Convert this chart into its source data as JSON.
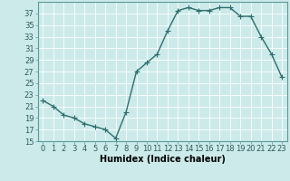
{
  "x": [
    0,
    1,
    2,
    3,
    4,
    5,
    6,
    7,
    8,
    9,
    10,
    11,
    12,
    13,
    14,
    15,
    16,
    17,
    18,
    19,
    20,
    21,
    22,
    23
  ],
  "y": [
    22,
    21,
    19.5,
    19,
    18,
    17.5,
    17,
    15.5,
    20,
    27,
    28.5,
    30,
    34,
    37.5,
    38,
    37.5,
    37.5,
    38,
    38,
    36.5,
    36.5,
    33,
    30,
    26
  ],
  "line_color": "#2d6e6e",
  "marker": "+",
  "marker_size": 4,
  "bg_color": "#cceaea",
  "grid_color": "#b0d8d8",
  "xlabel": "Humidex (Indice chaleur)",
  "ylim": [
    15,
    39
  ],
  "xlim": [
    -0.5,
    23.5
  ],
  "yticks": [
    15,
    17,
    19,
    21,
    23,
    25,
    27,
    29,
    31,
    33,
    35,
    37
  ],
  "xticks": [
    0,
    1,
    2,
    3,
    4,
    5,
    6,
    7,
    8,
    9,
    10,
    11,
    12,
    13,
    14,
    15,
    16,
    17,
    18,
    19,
    20,
    21,
    22,
    23
  ],
  "xlabel_fontsize": 7,
  "tick_fontsize": 6,
  "line_width": 1.0,
  "marker_edge_width": 0.8
}
